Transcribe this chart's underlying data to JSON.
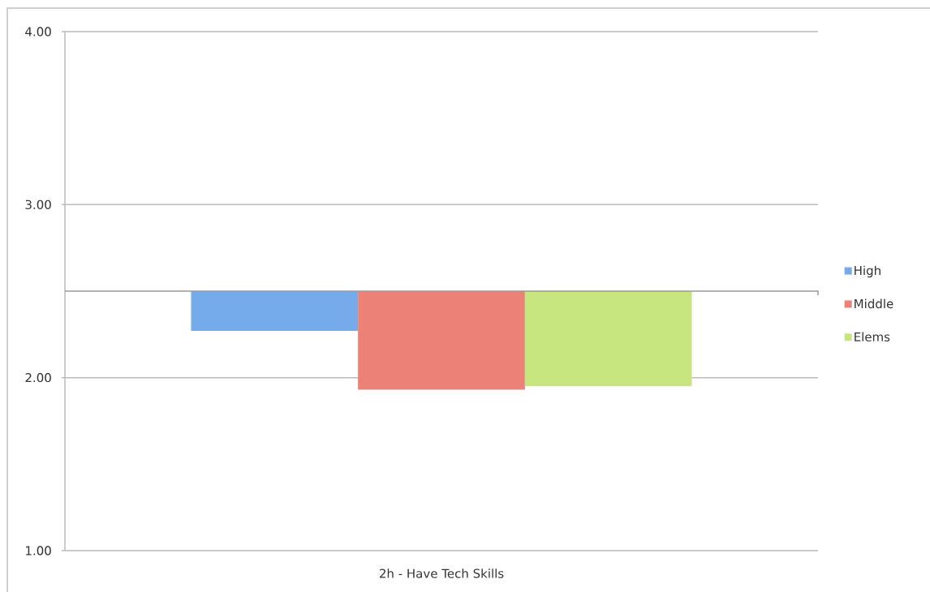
{
  "chart_data": {
    "type": "bar",
    "categories": [
      "2h - Have Tech Skills"
    ],
    "series": [
      {
        "name": "High",
        "color": "#75abeb",
        "values": [
          -0.23
        ],
        "base": [
          2.5
        ]
      },
      {
        "name": "Middle",
        "color": "#ec8178",
        "values": [
          -0.57
        ],
        "base": [
          2.5
        ]
      },
      {
        "name": "Elems",
        "color": "#c8e680",
        "values": [
          -0.55
        ],
        "base": [
          2.5
        ]
      }
    ],
    "ylim": [
      1,
      4
    ],
    "yticks": [
      {
        "value": 1,
        "label": "1.00"
      },
      {
        "value": 2,
        "label": "2.00"
      },
      {
        "value": 3,
        "label": "3.00"
      },
      {
        "value": 4,
        "label": "4.00"
      }
    ],
    "ref_lines": [
      {
        "axis": "y",
        "value": 2.5,
        "color": "#9a9a9a"
      }
    ],
    "grid": "y",
    "legend": "right"
  }
}
